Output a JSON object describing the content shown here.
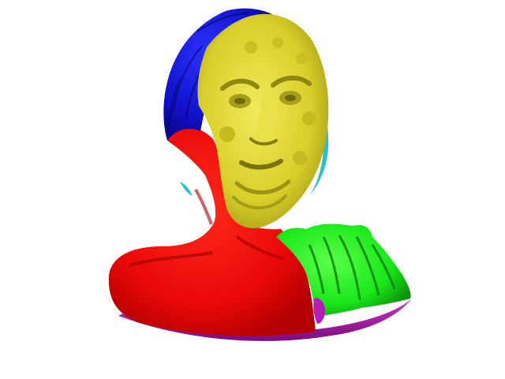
{
  "viewport": {
    "background": "#ffffff"
  },
  "model": {
    "kind": "segmented 3D bust mesh",
    "segment_colors": {
      "hair": "#1010c8",
      "face": "#d8cf2a",
      "face_edge": "#28c0d0",
      "neck_chest": "#ee0a0a",
      "shoulder_right": "#18e818",
      "base": "#a010a0"
    }
  }
}
